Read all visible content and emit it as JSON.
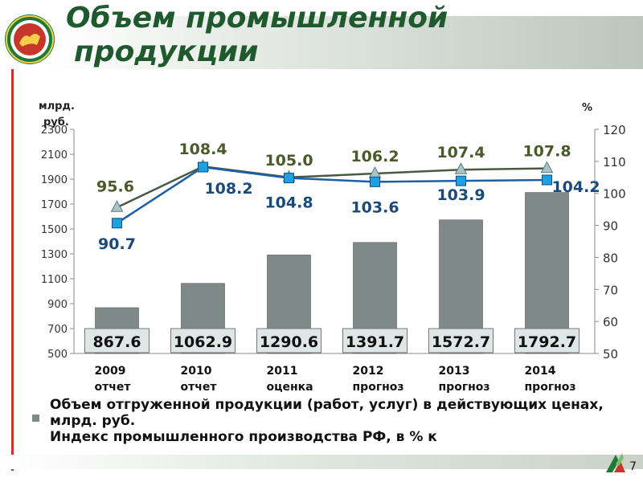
{
  "slide": {
    "title_line1": "Объем промышленной",
    "title_line2": "продукции",
    "page_number": "7"
  },
  "legend": {
    "bar_series": "Объем отгруженной продукции (работ, услуг) в действующих цен­ах, млрд. руб.",
    "line_series": "Индекс промышленного производства РФ, в % к"
  },
  "colors": {
    "title": "#1e5a2e",
    "bar": "#7f8a88",
    "bar_label_bg": "#dfe6e6",
    "line_rf": "#4a5a40",
    "line_region": "#1a5fa8",
    "marker_rf": "#a8c4c8",
    "marker_region": "#1fa0e0",
    "accent_red": "#c7362b"
  },
  "chart_data": {
    "type": "bar",
    "categories": [
      [
        "2009",
        "отчет"
      ],
      [
        "2010",
        "отчет"
      ],
      [
        "2011",
        "оценка"
      ],
      [
        "2012",
        "прогноз"
      ],
      [
        "2013",
        "прогноз"
      ],
      [
        "2014",
        "прогноз"
      ]
    ],
    "left_axis": {
      "label_line1": "млрд.",
      "label_line2": "руб.",
      "ylim": [
        500,
        2300
      ],
      "ticks": [
        500,
        700,
        900,
        1100,
        1300,
        1500,
        1700,
        1900,
        2100,
        2300
      ]
    },
    "right_axis": {
      "label": "%",
      "ylim": [
        50,
        120
      ],
      "ticks": [
        50,
        60,
        70,
        80,
        90,
        100,
        110,
        120
      ]
    },
    "bars": {
      "axis": "left",
      "values": [
        867.6,
        1062.9,
        1290.6,
        1391.7,
        1572.7,
        1792.7
      ],
      "labels": [
        "867.6",
        "1062.9",
        "1290.6",
        "1391.7",
        "1572.7",
        "1792.7"
      ]
    },
    "lines": [
      {
        "axis": "right",
        "marker": "triangle",
        "values": [
          95.6,
          108.4,
          105.0,
          106.2,
          107.4,
          107.8
        ],
        "labels": [
          "95.6",
          "108.4",
          "105.0",
          "106.2",
          "107.4",
          "107.8"
        ]
      },
      {
        "axis": "right",
        "marker": "square",
        "values": [
          90.7,
          108.2,
          104.8,
          103.6,
          103.9,
          104.2
        ],
        "labels": [
          "90.7",
          "108.2",
          "104.8",
          "103.6",
          "103.9",
          "104.2"
        ]
      }
    ]
  }
}
